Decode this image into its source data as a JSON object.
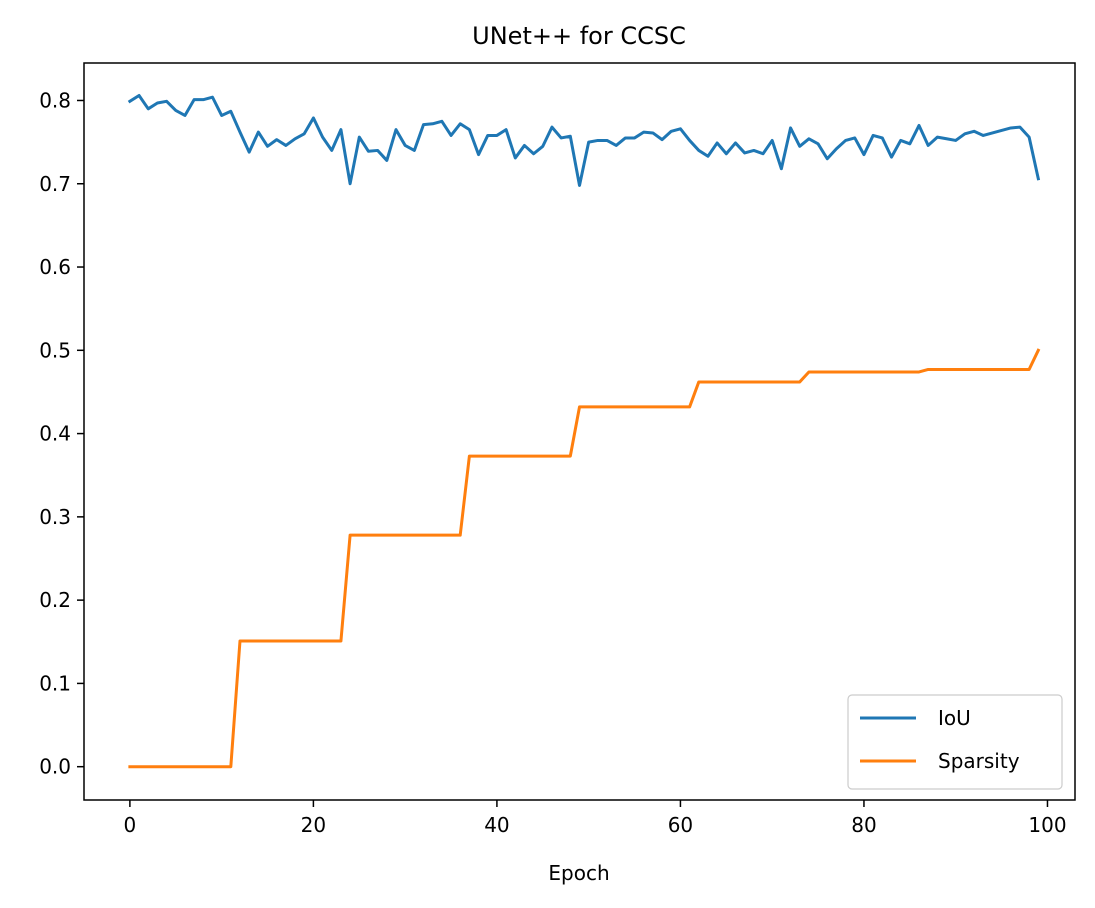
{
  "chart_data": {
    "type": "line",
    "title": "UNet++ for CCSC",
    "xlabel": "Epoch",
    "ylabel": "",
    "xlim": [
      -5,
      103
    ],
    "ylim": [
      -0.04,
      0.845
    ],
    "xticks": [
      0,
      20,
      40,
      60,
      80,
      100
    ],
    "xtick_labels": [
      "0",
      "20",
      "40",
      "60",
      "80",
      "100"
    ],
    "yticks": [
      0.0,
      0.1,
      0.2,
      0.3,
      0.4,
      0.5,
      0.6,
      0.7,
      0.8
    ],
    "ytick_labels": [
      "0.0",
      "0.1",
      "0.2",
      "0.3",
      "0.4",
      "0.5",
      "0.6",
      "0.7",
      "0.8"
    ],
    "grid": false,
    "legend_position": "lower-right",
    "x": [
      0,
      1,
      2,
      3,
      4,
      5,
      6,
      7,
      8,
      9,
      10,
      11,
      12,
      13,
      14,
      15,
      16,
      17,
      18,
      19,
      20,
      21,
      22,
      23,
      24,
      25,
      26,
      27,
      28,
      29,
      30,
      31,
      32,
      33,
      34,
      35,
      36,
      37,
      38,
      39,
      40,
      41,
      42,
      43,
      44,
      45,
      46,
      47,
      48,
      49,
      50,
      51,
      52,
      53,
      54,
      55,
      56,
      57,
      58,
      59,
      60,
      61,
      62,
      63,
      64,
      65,
      66,
      67,
      68,
      69,
      70,
      71,
      72,
      73,
      74,
      75,
      76,
      77,
      78,
      79,
      80,
      81,
      82,
      83,
      84,
      85,
      86,
      87,
      88,
      89,
      90,
      91,
      92,
      93,
      94,
      95,
      96,
      97,
      98,
      99
    ],
    "series": [
      {
        "name": "IoU",
        "color": "#1f77b4",
        "values": [
          0.799,
          0.806,
          0.79,
          0.797,
          0.799,
          0.788,
          0.782,
          0.801,
          0.801,
          0.804,
          0.782,
          0.787,
          0.762,
          0.738,
          0.762,
          0.745,
          0.753,
          0.746,
          0.754,
          0.76,
          0.779,
          0.756,
          0.74,
          0.765,
          0.7,
          0.756,
          0.739,
          0.74,
          0.728,
          0.765,
          0.746,
          0.74,
          0.771,
          0.772,
          0.775,
          0.758,
          0.772,
          0.765,
          0.735,
          0.758,
          0.758,
          0.765,
          0.731,
          0.746,
          0.736,
          0.745,
          0.768,
          0.755,
          0.757,
          0.698,
          0.75,
          0.752,
          0.752,
          0.746,
          0.755,
          0.755,
          0.762,
          0.761,
          0.753,
          0.763,
          0.766,
          0.752,
          0.74,
          0.733,
          0.749,
          0.736,
          0.749,
          0.737,
          0.74,
          0.736,
          0.752,
          0.718,
          0.767,
          0.745,
          0.754,
          0.748,
          0.73,
          0.742,
          0.752,
          0.755,
          0.735,
          0.758,
          0.755,
          0.732,
          0.752,
          0.748,
          0.77,
          0.746,
          0.756,
          0.754,
          0.752,
          0.76,
          0.763,
          0.758,
          0.761,
          0.764,
          0.767,
          0.768,
          0.756,
          0.706
        ]
      },
      {
        "name": "Sparsity",
        "color": "#ff7f0e",
        "values": [
          0,
          0,
          0,
          0,
          0,
          0,
          0,
          0,
          0,
          0,
          0,
          0,
          0.151,
          0.151,
          0.151,
          0.151,
          0.151,
          0.151,
          0.151,
          0.151,
          0.151,
          0.151,
          0.151,
          0.151,
          0.278,
          0.278,
          0.278,
          0.278,
          0.278,
          0.278,
          0.278,
          0.278,
          0.278,
          0.278,
          0.278,
          0.278,
          0.278,
          0.373,
          0.373,
          0.373,
          0.373,
          0.373,
          0.373,
          0.373,
          0.373,
          0.373,
          0.373,
          0.373,
          0.373,
          0.432,
          0.432,
          0.432,
          0.432,
          0.432,
          0.432,
          0.432,
          0.432,
          0.432,
          0.432,
          0.432,
          0.432,
          0.432,
          0.462,
          0.462,
          0.462,
          0.462,
          0.462,
          0.462,
          0.462,
          0.462,
          0.462,
          0.462,
          0.462,
          0.462,
          0.474,
          0.474,
          0.474,
          0.474,
          0.474,
          0.474,
          0.474,
          0.474,
          0.474,
          0.474,
          0.474,
          0.474,
          0.474,
          0.477,
          0.477,
          0.477,
          0.477,
          0.477,
          0.477,
          0.477,
          0.477,
          0.477,
          0.477,
          0.477,
          0.477,
          0.5
        ]
      }
    ]
  }
}
